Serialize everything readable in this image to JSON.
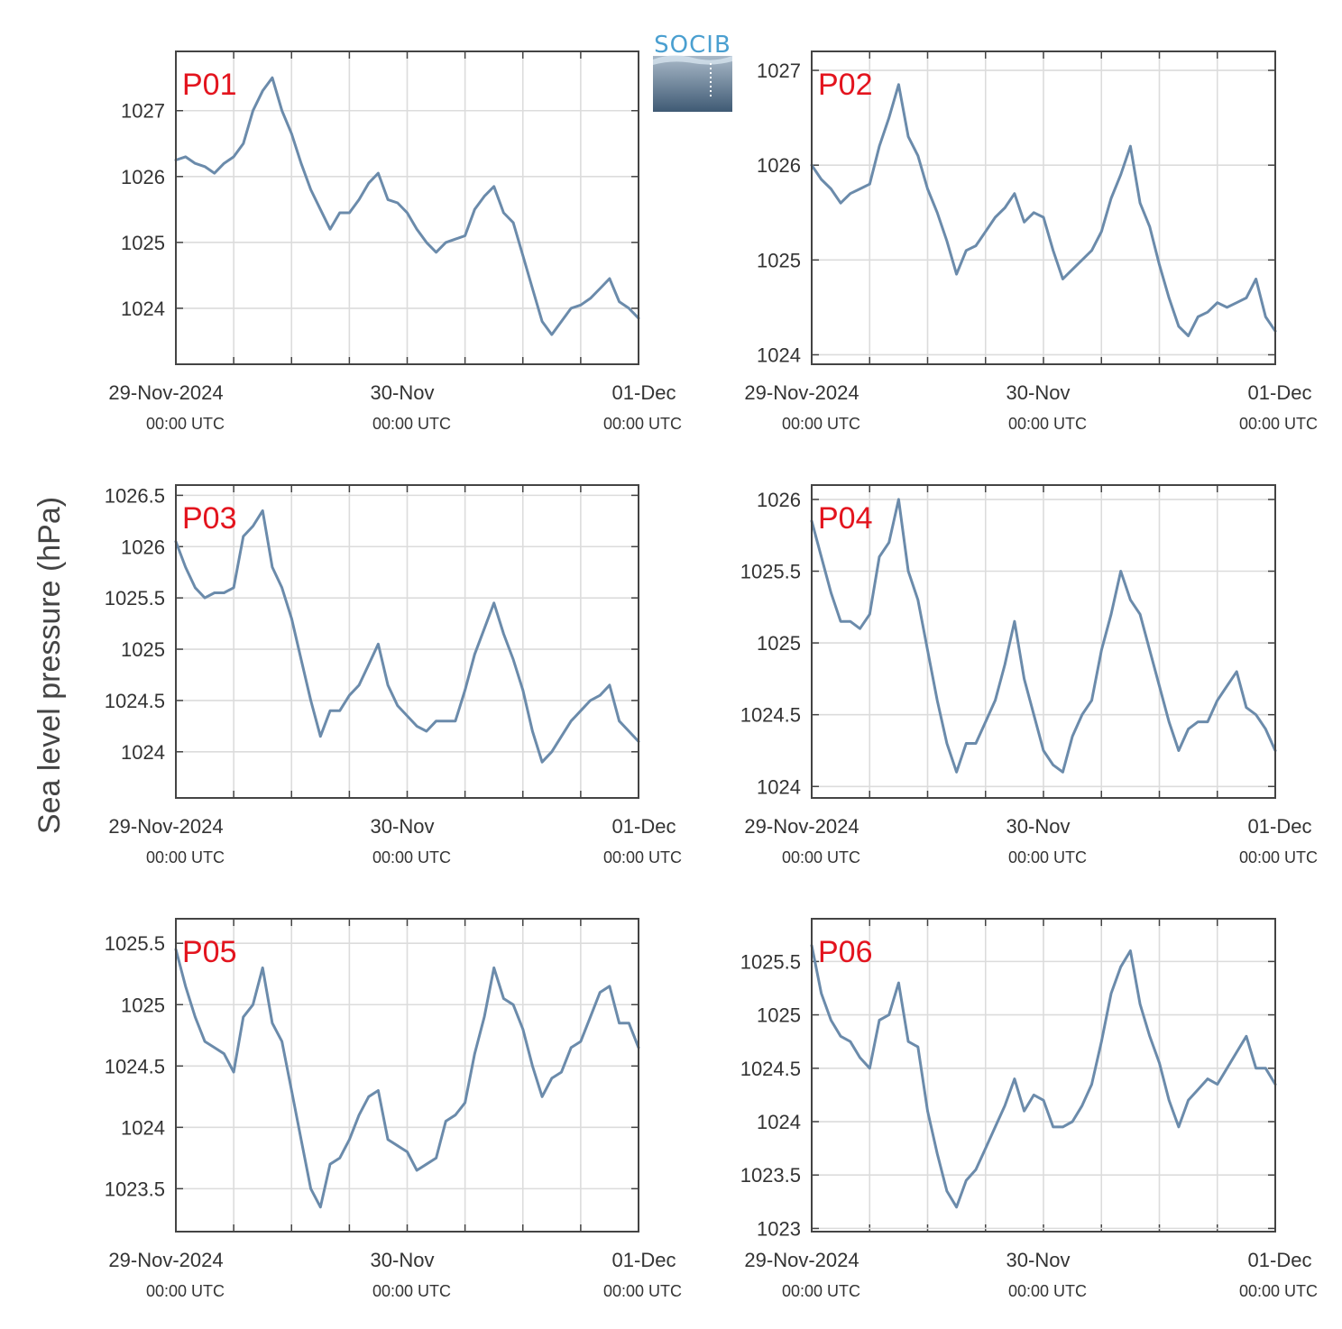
{
  "logo": {
    "text": "SOCIB",
    "accent_color": "#4a9fd0"
  },
  "colors": {
    "series": "#6b8bab",
    "panel_label": "#e3141e",
    "frame": "#444444",
    "grid": "#dcdcdc"
  },
  "chart_data": [
    {
      "type": "line",
      "panel_label": "P01",
      "ylabel": "Sea level pressure (hPa)",
      "x_ticks": [
        {
          "date": "29-Nov-2024",
          "time": "00:00 UTC"
        },
        {
          "date": "30-Nov",
          "time": "00:00 UTC"
        },
        {
          "date": "01-Dec",
          "time": "00:00 UTC"
        }
      ],
      "xlim_hours": [
        -6,
        42
      ],
      "ylim": [
        1023.15,
        1027.9
      ],
      "yticks": [
        "1024",
        "1025",
        "1026",
        "1027"
      ],
      "grid": true,
      "x_hours": [
        -6,
        -5,
        -4,
        -3,
        -2,
        -1,
        0,
        1,
        2,
        3,
        4,
        5,
        6,
        7,
        8,
        9,
        10,
        11,
        12,
        13,
        14,
        15,
        16,
        17,
        18,
        19,
        20,
        21,
        22,
        23,
        24,
        25,
        26,
        27,
        28,
        29,
        30,
        31,
        32,
        33,
        34,
        35,
        36,
        37,
        38,
        39,
        40,
        41,
        42
      ],
      "values": [
        1026.25,
        1026.3,
        1026.2,
        1026.15,
        1026.05,
        1026.2,
        1026.3,
        1026.5,
        1027.0,
        1027.3,
        1027.5,
        1027.0,
        1026.65,
        1026.2,
        1025.8,
        1025.5,
        1025.2,
        1025.45,
        1025.45,
        1025.65,
        1025.9,
        1026.05,
        1025.65,
        1025.6,
        1025.45,
        1025.2,
        1025.0,
        1024.85,
        1025.0,
        1025.05,
        1025.1,
        1025.5,
        1025.7,
        1025.85,
        1025.45,
        1025.3,
        1024.8,
        1024.3,
        1023.8,
        1023.6,
        1023.8,
        1024.0,
        1024.05,
        1024.15,
        1024.3,
        1024.45,
        1024.1,
        1024.0,
        1023.85
      ]
    },
    {
      "type": "line",
      "panel_label": "P02",
      "x_ticks": [
        {
          "date": "29-Nov-2024",
          "time": "00:00 UTC"
        },
        {
          "date": "30-Nov",
          "time": "00:00 UTC"
        },
        {
          "date": "01-Dec",
          "time": "00:00 UTC"
        }
      ],
      "xlim_hours": [
        -6,
        42
      ],
      "ylim": [
        1023.9,
        1027.2
      ],
      "yticks": [
        "1024",
        "1025",
        "1026",
        "1027"
      ],
      "grid": true,
      "x_hours": [
        -6,
        -5,
        -4,
        -3,
        -2,
        -1,
        0,
        1,
        2,
        3,
        4,
        5,
        6,
        7,
        8,
        9,
        10,
        11,
        12,
        13,
        14,
        15,
        16,
        17,
        18,
        19,
        20,
        21,
        22,
        23,
        24,
        25,
        26,
        27,
        28,
        29,
        30,
        31,
        32,
        33,
        34,
        35,
        36,
        37,
        38,
        39,
        40,
        41,
        42
      ],
      "values": [
        1026.0,
        1025.85,
        1025.75,
        1025.6,
        1025.7,
        1025.75,
        1025.8,
        1026.2,
        1026.5,
        1026.85,
        1026.3,
        1026.1,
        1025.75,
        1025.5,
        1025.2,
        1024.85,
        1025.1,
        1025.15,
        1025.3,
        1025.45,
        1025.55,
        1025.7,
        1025.4,
        1025.5,
        1025.45,
        1025.1,
        1024.8,
        1024.9,
        1025.0,
        1025.1,
        1025.3,
        1025.65,
        1025.9,
        1026.2,
        1025.6,
        1025.35,
        1024.95,
        1024.6,
        1024.3,
        1024.2,
        1024.4,
        1024.45,
        1024.55,
        1024.5,
        1024.55,
        1024.6,
        1024.8,
        1024.4,
        1024.25
      ]
    },
    {
      "type": "line",
      "panel_label": "P03",
      "x_ticks": [
        {
          "date": "29-Nov-2024",
          "time": "00:00 UTC"
        },
        {
          "date": "30-Nov",
          "time": "00:00 UTC"
        },
        {
          "date": "01-Dec",
          "time": "00:00 UTC"
        }
      ],
      "xlim_hours": [
        -6,
        42
      ],
      "ylim": [
        1023.55,
        1026.6
      ],
      "yticks": [
        "1024",
        "1024.5",
        "1025",
        "1025.5",
        "1026",
        "1026.5"
      ],
      "grid": true,
      "x_hours": [
        -6,
        -5,
        -4,
        -3,
        -2,
        -1,
        0,
        1,
        2,
        3,
        4,
        5,
        6,
        7,
        8,
        9,
        10,
        11,
        12,
        13,
        14,
        15,
        16,
        17,
        18,
        19,
        20,
        21,
        22,
        23,
        24,
        25,
        26,
        27,
        28,
        29,
        30,
        31,
        32,
        33,
        34,
        35,
        36,
        37,
        38,
        39,
        40,
        41,
        42
      ],
      "values": [
        1026.05,
        1025.8,
        1025.6,
        1025.5,
        1025.55,
        1025.55,
        1025.6,
        1026.1,
        1026.2,
        1026.35,
        1025.8,
        1025.6,
        1025.3,
        1024.9,
        1024.5,
        1024.15,
        1024.4,
        1024.4,
        1024.55,
        1024.65,
        1024.85,
        1025.05,
        1024.65,
        1024.45,
        1024.35,
        1024.25,
        1024.2,
        1024.3,
        1024.3,
        1024.3,
        1024.6,
        1024.95,
        1025.2,
        1025.45,
        1025.15,
        1024.9,
        1024.6,
        1024.2,
        1023.9,
        1024.0,
        1024.15,
        1024.3,
        1024.4,
        1024.5,
        1024.55,
        1024.65,
        1024.3,
        1024.2,
        1024.1
      ]
    },
    {
      "type": "line",
      "panel_label": "P04",
      "x_ticks": [
        {
          "date": "29-Nov-2024",
          "time": "00:00 UTC"
        },
        {
          "date": "30-Nov",
          "time": "00:00 UTC"
        },
        {
          "date": "01-Dec",
          "time": "00:00 UTC"
        }
      ],
      "xlim_hours": [
        -6,
        42
      ],
      "ylim": [
        1023.92,
        1026.1
      ],
      "yticks": [
        "1024",
        "1024.5",
        "1025",
        "1025.5",
        "1026"
      ],
      "grid": true,
      "x_hours": [
        -6,
        -5,
        -4,
        -3,
        -2,
        -1,
        0,
        1,
        2,
        3,
        4,
        5,
        6,
        7,
        8,
        9,
        10,
        11,
        12,
        13,
        14,
        15,
        16,
        17,
        18,
        19,
        20,
        21,
        22,
        23,
        24,
        25,
        26,
        27,
        28,
        29,
        30,
        31,
        32,
        33,
        34,
        35,
        36,
        37,
        38,
        39,
        40,
        41,
        42
      ],
      "values": [
        1025.85,
        1025.6,
        1025.35,
        1025.15,
        1025.15,
        1025.1,
        1025.2,
        1025.6,
        1025.7,
        1026.0,
        1025.5,
        1025.3,
        1024.95,
        1024.6,
        1024.3,
        1024.1,
        1024.3,
        1024.3,
        1024.45,
        1024.6,
        1024.85,
        1025.15,
        1024.75,
        1024.5,
        1024.25,
        1024.15,
        1024.1,
        1024.35,
        1024.5,
        1024.6,
        1024.95,
        1025.2,
        1025.5,
        1025.3,
        1025.2,
        1024.95,
        1024.7,
        1024.45,
        1024.25,
        1024.4,
        1024.45,
        1024.45,
        1024.6,
        1024.7,
        1024.8,
        1024.55,
        1024.5,
        1024.4,
        1024.25
      ]
    },
    {
      "type": "line",
      "panel_label": "P05",
      "x_ticks": [
        {
          "date": "29-Nov-2024",
          "time": "00:00 UTC"
        },
        {
          "date": "30-Nov",
          "time": "00:00 UTC"
        },
        {
          "date": "01-Dec",
          "time": "00:00 UTC"
        }
      ],
      "xlim_hours": [
        -6,
        42
      ],
      "ylim": [
        1023.15,
        1025.7
      ],
      "yticks": [
        "1023.5",
        "1024",
        "1024.5",
        "1025",
        "1025.5"
      ],
      "grid": true,
      "x_hours": [
        -6,
        -5,
        -4,
        -3,
        -2,
        -1,
        0,
        1,
        2,
        3,
        4,
        5,
        6,
        7,
        8,
        9,
        10,
        11,
        12,
        13,
        14,
        15,
        16,
        17,
        18,
        19,
        20,
        21,
        22,
        23,
        24,
        25,
        26,
        27,
        28,
        29,
        30,
        31,
        32,
        33,
        34,
        35,
        36,
        37,
        38,
        39,
        40,
        41,
        42
      ],
      "values": [
        1025.45,
        1025.15,
        1024.9,
        1024.7,
        1024.65,
        1024.6,
        1024.45,
        1024.9,
        1025.0,
        1025.3,
        1024.85,
        1024.7,
        1024.3,
        1023.9,
        1023.5,
        1023.35,
        1023.7,
        1023.75,
        1023.9,
        1024.1,
        1024.25,
        1024.3,
        1023.9,
        1023.85,
        1023.8,
        1023.65,
        1023.7,
        1023.75,
        1024.05,
        1024.1,
        1024.2,
        1024.6,
        1024.9,
        1025.3,
        1025.05,
        1025.0,
        1024.8,
        1024.5,
        1024.25,
        1024.4,
        1024.45,
        1024.65,
        1024.7,
        1024.9,
        1025.1,
        1025.15,
        1024.85,
        1024.85,
        1024.65
      ]
    },
    {
      "type": "line",
      "panel_label": "P06",
      "x_ticks": [
        {
          "date": "29-Nov-2024",
          "time": "00:00 UTC"
        },
        {
          "date": "30-Nov",
          "time": "00:00 UTC"
        },
        {
          "date": "01-Dec",
          "time": "00:00 UTC"
        }
      ],
      "xlim_hours": [
        -6,
        42
      ],
      "ylim": [
        1022.97,
        1025.9
      ],
      "yticks": [
        "1023",
        "1023.5",
        "1024",
        "1024.5",
        "1025",
        "1025.5"
      ],
      "grid": true,
      "x_hours": [
        -6,
        -5,
        -4,
        -3,
        -2,
        -1,
        0,
        1,
        2,
        3,
        4,
        5,
        6,
        7,
        8,
        9,
        10,
        11,
        12,
        13,
        14,
        15,
        16,
        17,
        18,
        19,
        20,
        21,
        22,
        23,
        24,
        25,
        26,
        27,
        28,
        29,
        30,
        31,
        32,
        33,
        34,
        35,
        36,
        37,
        38,
        39,
        40,
        41,
        42
      ],
      "values": [
        1025.65,
        1025.2,
        1024.95,
        1024.8,
        1024.75,
        1024.6,
        1024.5,
        1024.95,
        1025.0,
        1025.3,
        1024.75,
        1024.7,
        1024.1,
        1023.7,
        1023.35,
        1023.2,
        1023.45,
        1023.55,
        1023.75,
        1023.95,
        1024.15,
        1024.4,
        1024.1,
        1024.25,
        1024.2,
        1023.95,
        1023.95,
        1024.0,
        1024.15,
        1024.35,
        1024.75,
        1025.2,
        1025.45,
        1025.6,
        1025.1,
        1024.8,
        1024.55,
        1024.2,
        1023.95,
        1024.2,
        1024.3,
        1024.4,
        1024.35,
        1024.5,
        1024.65,
        1024.8,
        1024.5,
        1024.5,
        1024.35
      ]
    }
  ]
}
